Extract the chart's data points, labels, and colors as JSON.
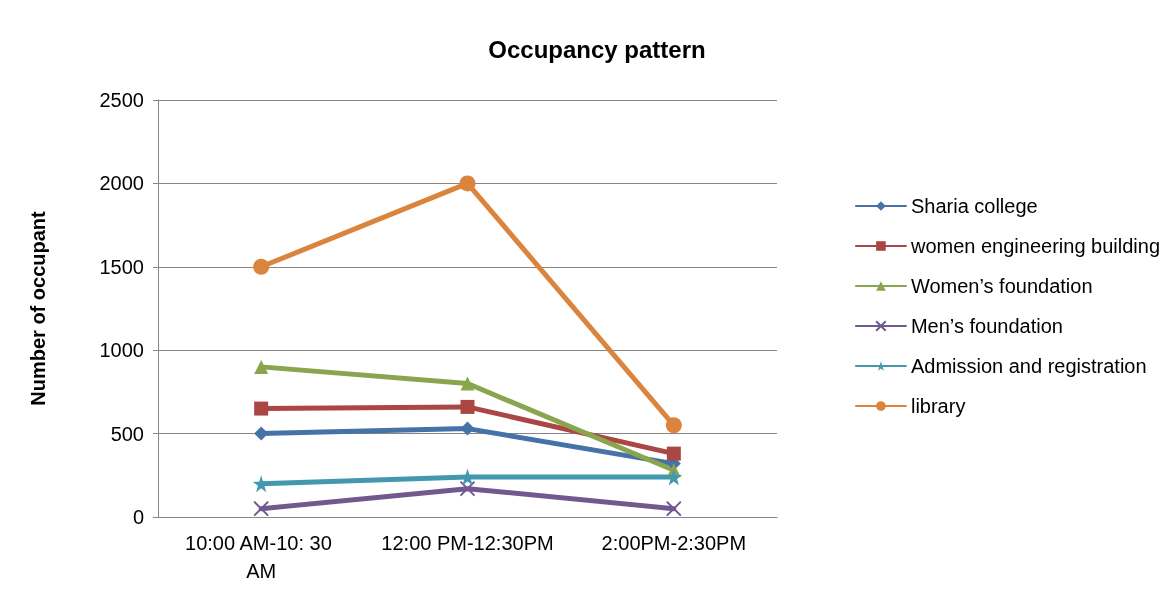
{
  "chart_data": {
    "type": "line",
    "title": "Occupancy pattern",
    "ylabel": "Number of occupant",
    "categories": [
      "10:00 AM-10: 30 AM",
      "12:00 PM-12:30PM",
      "2:00PM-2:30PM"
    ],
    "series": [
      {
        "name": "Sharia college",
        "color": "#4572a7",
        "marker": "diamond",
        "values": [
          500,
          530,
          320
        ]
      },
      {
        "name": "women engineering building",
        "color": "#aa4643",
        "marker": "square",
        "values": [
          650,
          660,
          380
        ]
      },
      {
        "name": "Women’s foundation",
        "color": "#89a54e",
        "marker": "triangle",
        "values": [
          900,
          800,
          280
        ]
      },
      {
        "name": "Men’s foundation",
        "color": "#71588f",
        "marker": "cross",
        "values": [
          50,
          170,
          50
        ]
      },
      {
        "name": "Admission and registration",
        "color": "#4198af",
        "marker": "star",
        "values": [
          200,
          240,
          240
        ]
      },
      {
        "name": "library",
        "color": "#db843d",
        "marker": "circle",
        "values": [
          1500,
          2000,
          550
        ]
      }
    ],
    "ylim": [
      0,
      2500
    ],
    "yticks": [
      0,
      500,
      1000,
      1500,
      2000,
      2500
    ],
    "grid": "y",
    "legend": "right",
    "line_style": "solid"
  }
}
